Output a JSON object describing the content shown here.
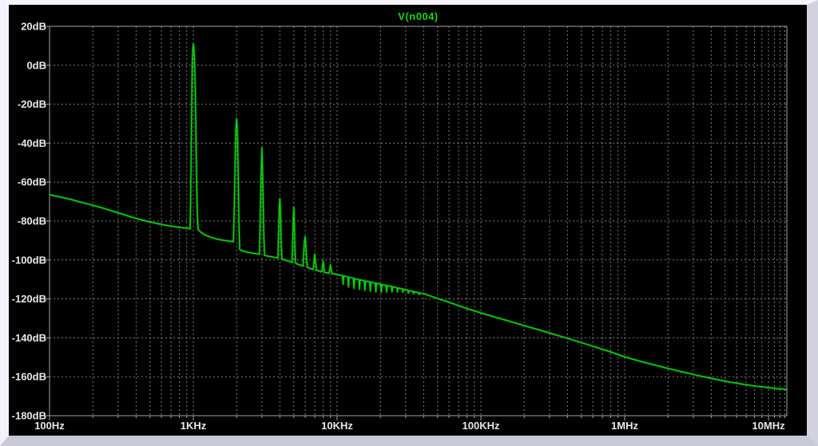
{
  "window": {
    "app_context": "waveform-viewer-plot-pane"
  },
  "colors": {
    "trace": "#0cd40c",
    "title": "#19d419",
    "plot_background": "#000000",
    "frame": "#a2a2a2",
    "grid": "#7d7d7d",
    "tick_label": "#e8e8e8",
    "bevel_light": "#f5f4fd",
    "bevel_dark": "#cfced c"
  },
  "chart_data": {
    "type": "line",
    "title": "V(n004)",
    "legend_position": "top-center",
    "grid": true,
    "x_axis": {
      "scale": "log",
      "unit": "Hz",
      "min_hz": 100,
      "max_hz": 13400000,
      "tick_labels": [
        {
          "f": 100,
          "label": "100Hz"
        },
        {
          "f": 1000,
          "label": "1KHz"
        },
        {
          "f": 10000,
          "label": "10KHz"
        },
        {
          "f": 100000,
          "label": "100KHz"
        },
        {
          "f": 1000000,
          "label": "1MHz"
        },
        {
          "f": 10000000,
          "label": "10MHz"
        }
      ]
    },
    "y_axis": {
      "unit": "dB",
      "min_db": -180,
      "max_db": 20,
      "step_db": 20,
      "tick_labels": [
        {
          "db": 20,
          "label": "20dB"
        },
        {
          "db": 0,
          "label": "0dB"
        },
        {
          "db": -20,
          "label": "-20dB"
        },
        {
          "db": -40,
          "label": "-40dB"
        },
        {
          "db": -60,
          "label": "-60dB"
        },
        {
          "db": -80,
          "label": "-80dB"
        },
        {
          "db": -100,
          "label": "-100dB"
        },
        {
          "db": -120,
          "label": "-120dB"
        },
        {
          "db": -140,
          "label": "-140dB"
        },
        {
          "db": -160,
          "label": "-160dB"
        },
        {
          "db": -180,
          "label": "-180dB"
        }
      ]
    },
    "harmonic_peaks": [
      {
        "freq_hz": 1000,
        "peak_db": 10.8
      },
      {
        "freq_hz": 2000,
        "peak_db": -27.5
      },
      {
        "freq_hz": 3000,
        "peak_db": -42.5
      },
      {
        "freq_hz": 4000,
        "peak_db": -68.5
      },
      {
        "freq_hz": 5000,
        "peak_db": -73
      },
      {
        "freq_hz": 6000,
        "peak_db": -88
      },
      {
        "freq_hz": 7000,
        "peak_db": -97
      },
      {
        "freq_hz": 8000,
        "peak_db": -100.5
      },
      {
        "freq_hz": 9000,
        "peak_db": -102.5
      }
    ],
    "series": [
      {
        "name": "V(n004)",
        "color": "#0cd40c",
        "points": [
          [
            100,
            -66.5
          ],
          [
            112,
            -67.3
          ],
          [
            126,
            -68.1
          ],
          [
            141,
            -68.9
          ],
          [
            158,
            -70
          ],
          [
            178,
            -70.9
          ],
          [
            200,
            -71.9
          ],
          [
            224,
            -72.9
          ],
          [
            251,
            -74
          ],
          [
            282,
            -75.2
          ],
          [
            316,
            -76.3
          ],
          [
            355,
            -77.5
          ],
          [
            398,
            -78.6
          ],
          [
            447,
            -79.6
          ],
          [
            501,
            -80.5
          ],
          [
            562,
            -81.3
          ],
          [
            631,
            -82.1
          ],
          [
            708,
            -82.7
          ],
          [
            794,
            -83.2
          ],
          [
            851,
            -83.5
          ],
          [
            902,
            -83.7
          ],
          [
            940,
            -83.9
          ],
          [
            950,
            -84.1
          ],
          [
            958,
            -70
          ],
          [
            966,
            -45
          ],
          [
            975,
            -18
          ],
          [
            984,
            2
          ],
          [
            992,
            8.5
          ],
          [
            1000,
            10.8
          ],
          [
            1009,
            8.5
          ],
          [
            1020,
            3
          ],
          [
            1032,
            -12
          ],
          [
            1044,
            -38
          ],
          [
            1056,
            -62
          ],
          [
            1068,
            -78
          ],
          [
            1080,
            -84.3
          ],
          [
            1122,
            -85.6
          ],
          [
            1202,
            -87.1
          ],
          [
            1318,
            -88.3
          ],
          [
            1445,
            -89.2
          ],
          [
            1585,
            -89.8
          ],
          [
            1738,
            -90.2
          ],
          [
            1862,
            -90.5
          ],
          [
            1900,
            -90.6
          ],
          [
            1925,
            -75
          ],
          [
            1950,
            -52
          ],
          [
            1975,
            -33
          ],
          [
            2000,
            -27.5
          ],
          [
            2025,
            -33
          ],
          [
            2051,
            -55
          ],
          [
            2075,
            -80
          ],
          [
            2100,
            -94.6
          ],
          [
            2188,
            -95.3
          ],
          [
            2399,
            -96.1
          ],
          [
            2630,
            -96.6
          ],
          [
            2818,
            -96.9
          ],
          [
            2884,
            -97
          ],
          [
            2917,
            -80
          ],
          [
            2958,
            -56
          ],
          [
            3000,
            -42.5
          ],
          [
            3041,
            -58
          ],
          [
            3083,
            -84
          ],
          [
            3126,
            -97.6
          ],
          [
            3236,
            -97.9
          ],
          [
            3548,
            -98.5
          ],
          [
            3802,
            -98.9
          ],
          [
            3873,
            -99
          ],
          [
            3917,
            -86
          ],
          [
            3958,
            -73
          ],
          [
            4000,
            -68.5
          ],
          [
            4042,
            -76
          ],
          [
            4084,
            -91
          ],
          [
            4130,
            -99.5
          ],
          [
            4266,
            -99.9
          ],
          [
            4571,
            -100.6
          ],
          [
            4800,
            -101.1
          ],
          [
            4864,
            -101.2
          ],
          [
            4909,
            -90
          ],
          [
            4954,
            -78
          ],
          [
            5000,
            -73
          ],
          [
            5047,
            -82
          ],
          [
            5094,
            -95
          ],
          [
            5142,
            -101.7
          ],
          [
            5370,
            -102.3
          ],
          [
            5702,
            -102.9
          ],
          [
            5794,
            -103.1
          ],
          [
            5862,
            -96
          ],
          [
            5931,
            -90
          ],
          [
            6000,
            -88
          ],
          [
            6070,
            -93
          ],
          [
            6141,
            -100
          ],
          [
            6213,
            -103.8
          ],
          [
            6457,
            -104.3
          ],
          [
            6746,
            -104.7
          ],
          [
            6826,
            -104.8
          ],
          [
            6912,
            -101
          ],
          [
            7000,
            -97
          ],
          [
            7089,
            -101.5
          ],
          [
            7179,
            -105.3
          ],
          [
            7413,
            -105.6
          ],
          [
            7745,
            -106
          ],
          [
            7834,
            -106.1
          ],
          [
            7916,
            -103
          ],
          [
            8000,
            -100.5
          ],
          [
            8084,
            -103.5
          ],
          [
            8170,
            -106.4
          ],
          [
            8511,
            -106.6
          ],
          [
            8790,
            -106.8
          ],
          [
            8894,
            -104.5
          ],
          [
            9000,
            -102.5
          ],
          [
            9107,
            -105
          ],
          [
            9216,
            -107
          ],
          [
            9550,
            -107.2
          ],
          [
            9908,
            -107.45
          ],
          [
            10471,
            -107.75
          ],
          [
            10889,
            -108
          ],
          [
            11000,
            -112.5
          ],
          [
            11112,
            -108.25
          ],
          [
            11885,
            -108.7
          ],
          [
            12000,
            -113.8
          ],
          [
            12116,
            -108.95
          ],
          [
            12970,
            -109.4
          ],
          [
            13100,
            -114.5
          ],
          [
            13231,
            -109.65
          ],
          [
            14156,
            -110.05
          ],
          [
            14300,
            -115
          ],
          [
            14444,
            -110.25
          ],
          [
            15444,
            -110.65
          ],
          [
            15600,
            -115.6
          ],
          [
            15757,
            -110.85
          ],
          [
            16832,
            -111.25
          ],
          [
            17000,
            -116
          ],
          [
            17171,
            -111.45
          ],
          [
            18414,
            -111.85
          ],
          [
            18600,
            -116.4
          ],
          [
            18787,
            -112.05
          ],
          [
            20098,
            -112.45
          ],
          [
            20300,
            -116.6
          ],
          [
            20504,
            -112.65
          ],
          [
            21879,
            -113.05
          ],
          [
            22100,
            -116.6
          ],
          [
            22322,
            -113.25
          ],
          [
            23861,
            -113.55
          ],
          [
            24100,
            -116.4
          ],
          [
            24342,
            -113.75
          ],
          [
            26038,
            -114.25
          ],
          [
            26300,
            -116.4
          ],
          [
            26564,
            -114.45
          ],
          [
            28414,
            -114.85
          ],
          [
            28700,
            -116.6
          ],
          [
            28988,
            -115.05
          ],
          [
            30988,
            -115.55
          ],
          [
            31300,
            -117
          ],
          [
            31614,
            -115.75
          ],
          [
            33760,
            -116.15
          ],
          [
            34100,
            -117.3
          ],
          [
            34442,
            -116.35
          ],
          [
            36829,
            -116.8
          ],
          [
            37200,
            -117.8
          ],
          [
            37573,
            -117
          ],
          [
            40000,
            -117.3
          ],
          [
            50119,
            -119.8
          ],
          [
            63096,
            -122.3
          ],
          [
            79433,
            -124.9
          ],
          [
            100000,
            -127.2
          ],
          [
            125893,
            -129.4
          ],
          [
            158489,
            -131.5
          ],
          [
            199526,
            -133.7
          ],
          [
            251189,
            -135.8
          ],
          [
            316228,
            -138
          ],
          [
            398107,
            -140.2
          ],
          [
            501187,
            -142.5
          ],
          [
            630957,
            -144.8
          ],
          [
            794328,
            -147.2
          ],
          [
            1000000,
            -149.8
          ],
          [
            1258925,
            -151.9
          ],
          [
            1584893,
            -153.8
          ],
          [
            1995262,
            -155.7
          ],
          [
            2511886,
            -157.5
          ],
          [
            3162278,
            -159.2
          ],
          [
            3981072,
            -160.8
          ],
          [
            5011872,
            -162.3
          ],
          [
            6309573,
            -163.6
          ],
          [
            7943282,
            -164.7
          ],
          [
            10000000,
            -165.6
          ],
          [
            11500000,
            -166.1
          ],
          [
            13400000,
            -166.5
          ]
        ]
      }
    ]
  }
}
